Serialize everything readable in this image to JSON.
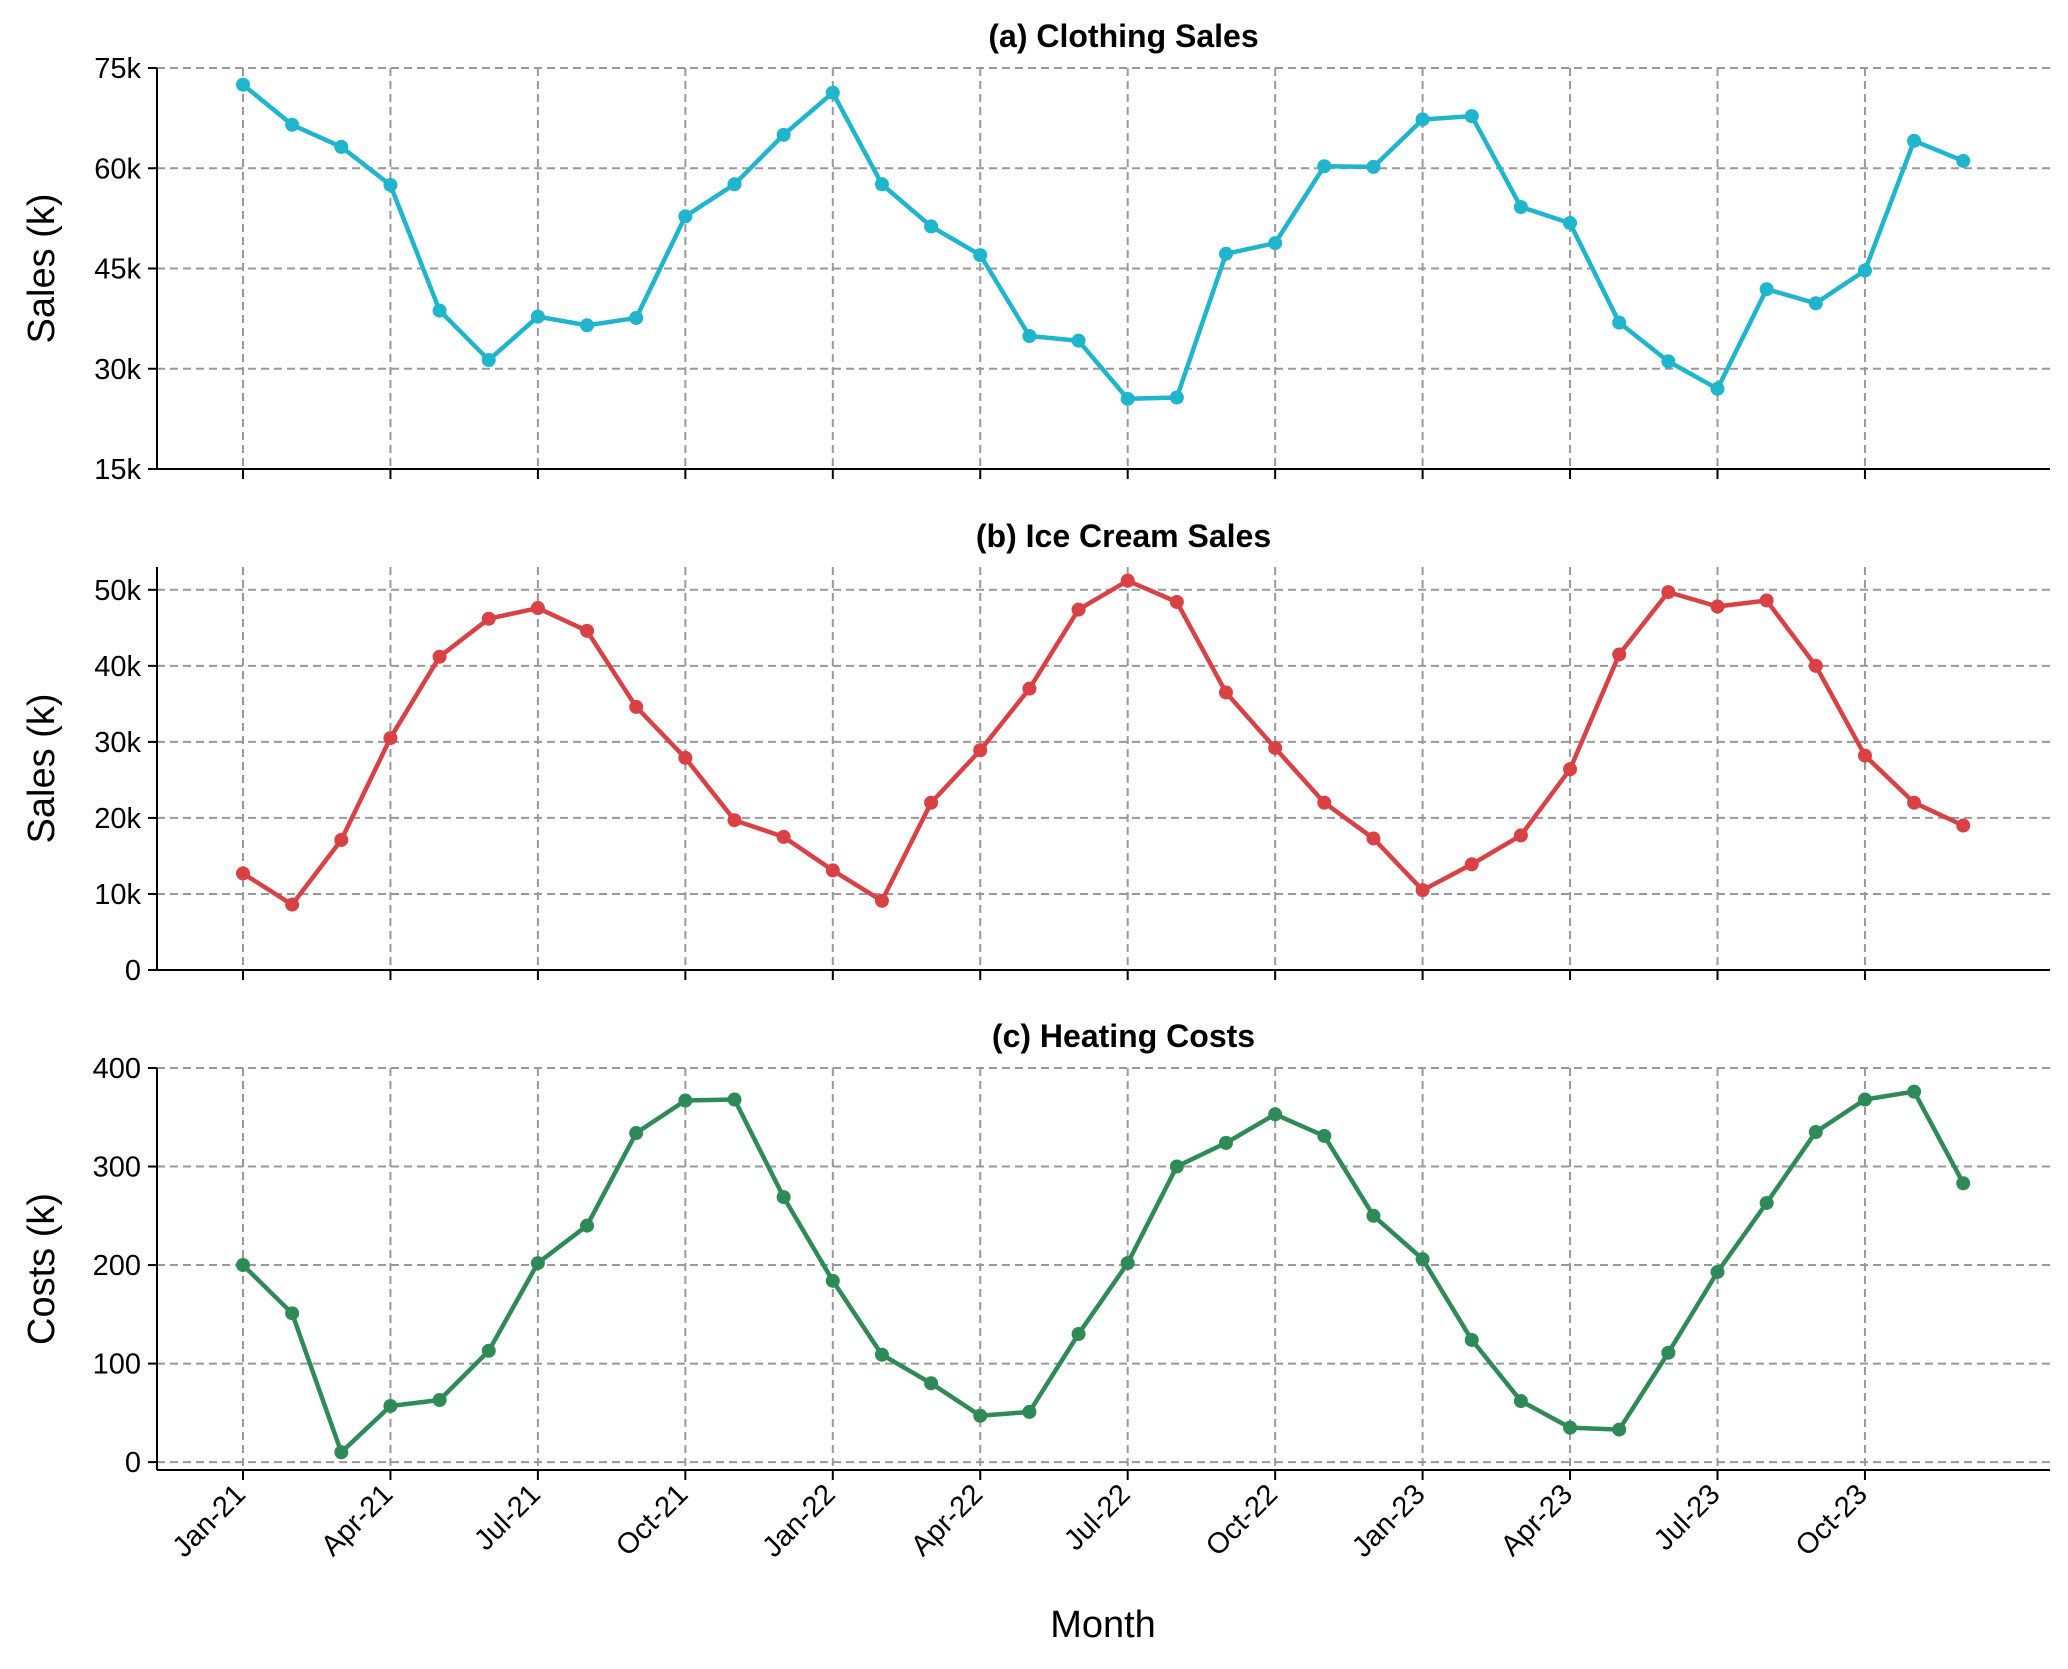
{
  "figure": {
    "xlabel": "Month",
    "x_tick_labels": [
      "Jan-21",
      "Apr-21",
      "Jul-21",
      "Oct-21",
      "Jan-22",
      "Apr-22",
      "Jul-22",
      "Oct-22",
      "Jan-23",
      "Apr-23",
      "Jul-23",
      "Oct-23"
    ]
  },
  "chart_data": [
    {
      "type": "line",
      "title": "(a) Clothing Sales",
      "xlabel": "Month",
      "ylabel": "Sales (k)",
      "x": [
        "Jan-21",
        "Feb-21",
        "Mar-21",
        "Apr-21",
        "May-21",
        "Jun-21",
        "Jul-21",
        "Aug-21",
        "Sep-21",
        "Oct-21",
        "Nov-21",
        "Dec-21",
        "Jan-22",
        "Feb-22",
        "Mar-22",
        "Apr-22",
        "May-22",
        "Jun-22",
        "Jul-22",
        "Aug-22",
        "Sep-22",
        "Oct-22",
        "Nov-22",
        "Dec-22",
        "Jan-23",
        "Feb-23",
        "Mar-23",
        "Apr-23",
        "May-23",
        "Jun-23",
        "Jul-23",
        "Aug-23",
        "Sep-23",
        "Oct-23",
        "Nov-23",
        "Dec-23"
      ],
      "series": [
        {
          "values": [
            72.5,
            66.5,
            63.2,
            57.5,
            38.7,
            31.3,
            37.8,
            36.5,
            37.6,
            52.8,
            57.6,
            65.0,
            71.3,
            57.6,
            51.3,
            47.0,
            34.9,
            34.2,
            25.5,
            25.7,
            47.2,
            48.8,
            60.3,
            60.2,
            67.3,
            67.8,
            54.2,
            51.8,
            36.9,
            31.1,
            27.0,
            41.9,
            39.8,
            44.7,
            64.1,
            61.1
          ],
          "color": "#1fb5cc"
        }
      ],
      "ylim": [
        15,
        75
      ],
      "y_ticks": [
        15,
        30,
        45,
        60,
        75
      ],
      "y_tick_labels": [
        "15k",
        "30k",
        "45k",
        "60k",
        "75k"
      ],
      "grid": true
    },
    {
      "type": "line",
      "title": "(b) Ice Cream Sales",
      "xlabel": "Month",
      "ylabel": "Sales (k)",
      "x": [
        "Jan-21",
        "Feb-21",
        "Mar-21",
        "Apr-21",
        "May-21",
        "Jun-21",
        "Jul-21",
        "Aug-21",
        "Sep-21",
        "Oct-21",
        "Nov-21",
        "Dec-21",
        "Jan-22",
        "Feb-22",
        "Mar-22",
        "Apr-22",
        "May-22",
        "Jun-22",
        "Jul-22",
        "Aug-22",
        "Sep-22",
        "Oct-22",
        "Nov-22",
        "Dec-22",
        "Jan-23",
        "Feb-23",
        "Mar-23",
        "Apr-23",
        "May-23",
        "Jun-23",
        "Jul-23",
        "Aug-23",
        "Sep-23",
        "Oct-23",
        "Nov-23",
        "Dec-23"
      ],
      "series": [
        {
          "values": [
            12.7,
            8.6,
            17.1,
            30.5,
            41.2,
            46.2,
            47.6,
            44.6,
            34.6,
            27.9,
            19.7,
            17.5,
            13.1,
            9.1,
            22.0,
            28.9,
            37.0,
            47.4,
            51.2,
            48.4,
            36.5,
            29.2,
            22.0,
            17.3,
            10.5,
            13.9,
            17.7,
            26.4,
            41.5,
            49.7,
            47.8,
            48.6,
            40.0,
            28.2,
            22.0,
            19.0
          ],
          "color": "#d94145"
        }
      ],
      "ylim": [
        0,
        53
      ],
      "y_ticks": [
        0,
        10,
        20,
        30,
        40,
        50
      ],
      "y_tick_labels": [
        "0",
        "10k",
        "20k",
        "30k",
        "40k",
        "50k"
      ],
      "grid": true
    },
    {
      "type": "line",
      "title": "(c) Heating Costs",
      "xlabel": "Month",
      "ylabel": "Costs (k)",
      "x": [
        "Jan-21",
        "Feb-21",
        "Mar-21",
        "Apr-21",
        "May-21",
        "Jun-21",
        "Jul-21",
        "Aug-21",
        "Sep-21",
        "Oct-21",
        "Nov-21",
        "Dec-21",
        "Jan-22",
        "Feb-22",
        "Mar-22",
        "Apr-22",
        "May-22",
        "Jun-22",
        "Jul-22",
        "Aug-22",
        "Sep-22",
        "Oct-22",
        "Nov-22",
        "Dec-22",
        "Jan-23",
        "Feb-23",
        "Mar-23",
        "Apr-23",
        "May-23",
        "Jun-23",
        "Jul-23",
        "Aug-23",
        "Sep-23",
        "Oct-23",
        "Nov-23",
        "Dec-23"
      ],
      "series": [
        {
          "values": [
            200,
            151,
            10,
            57,
            63,
            113,
            202,
            240,
            334,
            367,
            368,
            269,
            184,
            109,
            80,
            47,
            51,
            130,
            202,
            300,
            324,
            353,
            331,
            250,
            206,
            124,
            62,
            35,
            33,
            111,
            193,
            263,
            335,
            368,
            376,
            283
          ],
          "color": "#2e8b57"
        }
      ],
      "ylim": [
        -8,
        400
      ],
      "y_ticks": [
        0,
        100,
        200,
        300,
        400
      ],
      "y_tick_labels": [
        "0",
        "100",
        "200",
        "300",
        "400"
      ],
      "grid": true
    }
  ]
}
